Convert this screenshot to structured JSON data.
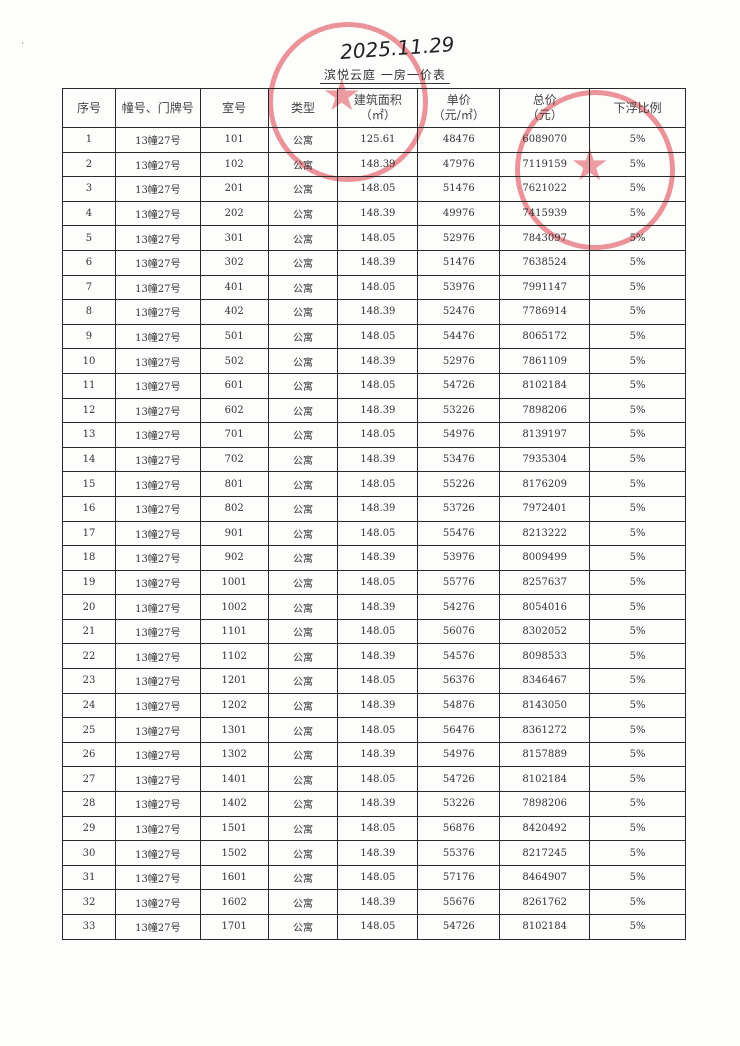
{
  "header": {
    "date": "2025.11.29",
    "title": "滨悦云庭 一房一价表"
  },
  "columns": [
    "序号",
    "幢号、门牌号",
    "室号",
    "类型",
    "建筑面积\n（㎡）",
    "单价\n（元/㎡）",
    "总价\n（元）",
    "下浮比例"
  ],
  "rows": [
    [
      "1",
      "13幢27号",
      "101",
      "公寓",
      "125.61",
      "48476",
      "6089070",
      "5%"
    ],
    [
      "2",
      "13幢27号",
      "102",
      "公寓",
      "148.39",
      "47976",
      "7119159",
      "5%"
    ],
    [
      "3",
      "13幢27号",
      "201",
      "公寓",
      "148.05",
      "51476",
      "7621022",
      "5%"
    ],
    [
      "4",
      "13幢27号",
      "202",
      "公寓",
      "148.39",
      "49976",
      "7415939",
      "5%"
    ],
    [
      "5",
      "13幢27号",
      "301",
      "公寓",
      "148.05",
      "52976",
      "7843097",
      "5%"
    ],
    [
      "6",
      "13幢27号",
      "302",
      "公寓",
      "148.39",
      "51476",
      "7638524",
      "5%"
    ],
    [
      "7",
      "13幢27号",
      "401",
      "公寓",
      "148.05",
      "53976",
      "7991147",
      "5%"
    ],
    [
      "8",
      "13幢27号",
      "402",
      "公寓",
      "148.39",
      "52476",
      "7786914",
      "5%"
    ],
    [
      "9",
      "13幢27号",
      "501",
      "公寓",
      "148.05",
      "54476",
      "8065172",
      "5%"
    ],
    [
      "10",
      "13幢27号",
      "502",
      "公寓",
      "148.39",
      "52976",
      "7861109",
      "5%"
    ],
    [
      "11",
      "13幢27号",
      "601",
      "公寓",
      "148.05",
      "54726",
      "8102184",
      "5%"
    ],
    [
      "12",
      "13幢27号",
      "602",
      "公寓",
      "148.39",
      "53226",
      "7898206",
      "5%"
    ],
    [
      "13",
      "13幢27号",
      "701",
      "公寓",
      "148.05",
      "54976",
      "8139197",
      "5%"
    ],
    [
      "14",
      "13幢27号",
      "702",
      "公寓",
      "148.39",
      "53476",
      "7935304",
      "5%"
    ],
    [
      "15",
      "13幢27号",
      "801",
      "公寓",
      "148.05",
      "55226",
      "8176209",
      "5%"
    ],
    [
      "16",
      "13幢27号",
      "802",
      "公寓",
      "148.39",
      "53726",
      "7972401",
      "5%"
    ],
    [
      "17",
      "13幢27号",
      "901",
      "公寓",
      "148.05",
      "55476",
      "8213222",
      "5%"
    ],
    [
      "18",
      "13幢27号",
      "902",
      "公寓",
      "148.39",
      "53976",
      "8009499",
      "5%"
    ],
    [
      "19",
      "13幢27号",
      "1001",
      "公寓",
      "148.05",
      "55776",
      "8257637",
      "5%"
    ],
    [
      "20",
      "13幢27号",
      "1002",
      "公寓",
      "148.39",
      "54276",
      "8054016",
      "5%"
    ],
    [
      "21",
      "13幢27号",
      "1101",
      "公寓",
      "148.05",
      "56076",
      "8302052",
      "5%"
    ],
    [
      "22",
      "13幢27号",
      "1102",
      "公寓",
      "148.39",
      "54576",
      "8098533",
      "5%"
    ],
    [
      "23",
      "13幢27号",
      "1201",
      "公寓",
      "148.05",
      "56376",
      "8346467",
      "5%"
    ],
    [
      "24",
      "13幢27号",
      "1202",
      "公寓",
      "148.39",
      "54876",
      "8143050",
      "5%"
    ],
    [
      "25",
      "13幢27号",
      "1301",
      "公寓",
      "148.05",
      "56476",
      "8361272",
      "5%"
    ],
    [
      "26",
      "13幢27号",
      "1302",
      "公寓",
      "148.39",
      "54976",
      "8157889",
      "5%"
    ],
    [
      "27",
      "13幢27号",
      "1401",
      "公寓",
      "148.05",
      "54726",
      "8102184",
      "5%"
    ],
    [
      "28",
      "13幢27号",
      "1402",
      "公寓",
      "148.39",
      "53226",
      "7898206",
      "5%"
    ],
    [
      "29",
      "13幢27号",
      "1501",
      "公寓",
      "148.05",
      "56876",
      "8420492",
      "5%"
    ],
    [
      "30",
      "13幢27号",
      "1502",
      "公寓",
      "148.39",
      "55376",
      "8217245",
      "5%"
    ],
    [
      "31",
      "13幢27号",
      "1601",
      "公寓",
      "148.05",
      "57176",
      "8464907",
      "5%"
    ],
    [
      "32",
      "13幢27号",
      "1602",
      "公寓",
      "148.39",
      "55676",
      "8261762",
      "5%"
    ],
    [
      "33",
      "13幢27号",
      "1701",
      "公寓",
      "148.05",
      "54726",
      "8102184",
      "5%"
    ]
  ],
  "stamp_color": "#dc3c46"
}
